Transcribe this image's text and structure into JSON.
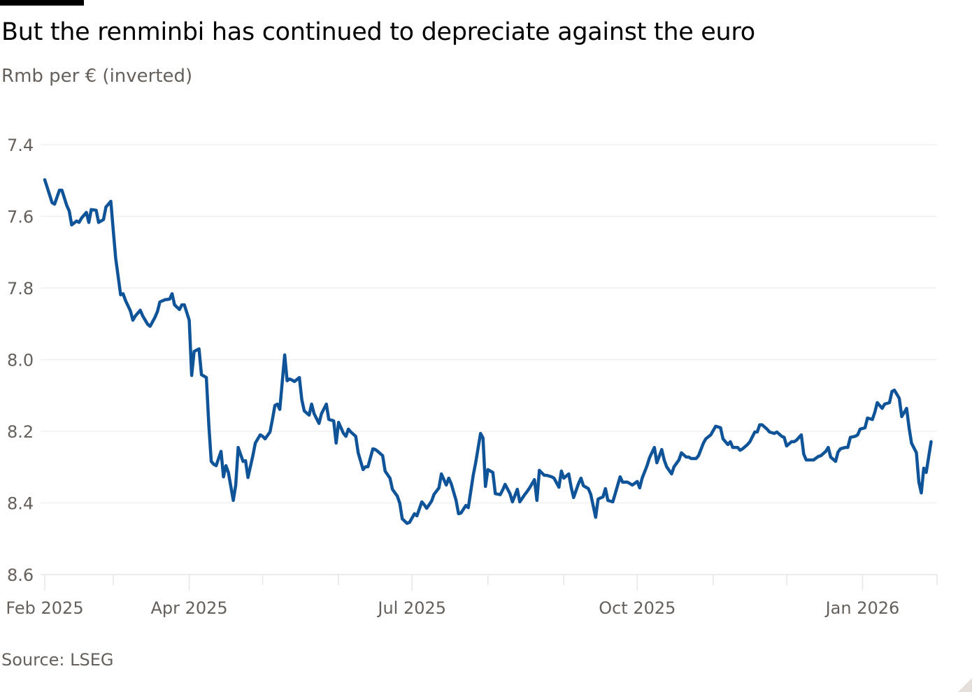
{
  "header": {
    "title": "But the renminbi has continued to depreciate against the euro",
    "subtitle": "Rmb per € (inverted)"
  },
  "footer": {
    "source": "Source: LSEG"
  },
  "chart_data": {
    "type": "line",
    "title": "But the renminbi has continued to depreciate against the euro",
    "ylabel": "Rmb per € (inverted)",
    "xlabel": "",
    "y_inverted": true,
    "ylim": [
      7.4,
      8.6
    ],
    "yticks": [
      "7.4",
      "7.6",
      "7.8",
      "8.0",
      "8.2",
      "8.4",
      "8.6"
    ],
    "xlim": [
      "2025-02-01",
      "2026-02-01"
    ],
    "xticks_minor_monthly": true,
    "xticks": [
      {
        "date": "2025-02-01",
        "label": "Feb 2025"
      },
      {
        "date": "2025-04-01",
        "label": "Apr 2025"
      },
      {
        "date": "2025-07-01",
        "label": "Jul 2025"
      },
      {
        "date": "2025-10-01",
        "label": "Oct 2025"
      },
      {
        "date": "2026-01-01",
        "label": "Jan 2026"
      }
    ],
    "grid": "horizontal",
    "line_color": "#0f5499",
    "series": [
      {
        "points": [
          [
            "2025-02-01",
            7.498
          ],
          [
            "2025-02-02",
            7.519
          ],
          [
            "2025-02-04",
            7.562
          ],
          [
            "2025-02-05",
            7.566
          ],
          [
            "2025-02-07",
            7.527
          ],
          [
            "2025-02-08",
            7.527
          ],
          [
            "2025-02-10",
            7.57
          ],
          [
            "2025-02-11",
            7.585
          ],
          [
            "2025-02-12",
            7.624
          ],
          [
            "2025-02-14",
            7.613
          ],
          [
            "2025-02-15",
            7.617
          ],
          [
            "2025-02-16",
            7.605
          ],
          [
            "2025-02-18",
            7.589
          ],
          [
            "2025-02-19",
            7.617
          ],
          [
            "2025-02-20",
            7.581
          ],
          [
            "2025-02-22",
            7.583
          ],
          [
            "2025-02-23",
            7.617
          ],
          [
            "2025-02-25",
            7.609
          ],
          [
            "2025-02-26",
            7.574
          ],
          [
            "2025-02-28",
            7.558
          ],
          [
            "2025-03-01",
            7.64
          ],
          [
            "2025-03-02",
            7.718
          ],
          [
            "2025-03-04",
            7.819
          ],
          [
            "2025-03-05",
            7.816
          ],
          [
            "2025-03-06",
            7.835
          ],
          [
            "2025-03-08",
            7.864
          ],
          [
            "2025-03-09",
            7.89
          ],
          [
            "2025-03-10",
            7.878
          ],
          [
            "2025-03-12",
            7.862
          ],
          [
            "2025-03-13",
            7.878
          ],
          [
            "2025-03-15",
            7.901
          ],
          [
            "2025-03-16",
            7.907
          ],
          [
            "2025-03-18",
            7.882
          ],
          [
            "2025-03-19",
            7.866
          ],
          [
            "2025-03-20",
            7.839
          ],
          [
            "2025-03-22",
            7.833
          ],
          [
            "2025-03-24",
            7.831
          ],
          [
            "2025-03-25",
            7.816
          ],
          [
            "2025-03-26",
            7.847
          ],
          [
            "2025-03-28",
            7.86
          ],
          [
            "2025-03-29",
            7.847
          ],
          [
            "2025-03-30",
            7.847
          ],
          [
            "2025-04-01",
            7.89
          ],
          [
            "2025-04-02",
            8.044
          ],
          [
            "2025-04-03",
            7.977
          ],
          [
            "2025-04-05",
            7.97
          ],
          [
            "2025-04-06",
            8.042
          ],
          [
            "2025-04-08",
            8.05
          ],
          [
            "2025-04-09",
            8.182
          ],
          [
            "2025-04-10",
            8.284
          ],
          [
            "2025-04-11",
            8.292
          ],
          [
            "2025-04-12",
            8.296
          ],
          [
            "2025-04-14",
            8.256
          ],
          [
            "2025-04-15",
            8.327
          ],
          [
            "2025-04-16",
            8.296
          ],
          [
            "2025-04-17",
            8.315
          ],
          [
            "2025-04-19",
            8.393
          ],
          [
            "2025-04-20",
            8.35
          ],
          [
            "2025-04-21",
            8.245
          ],
          [
            "2025-04-23",
            8.284
          ],
          [
            "2025-04-24",
            8.282
          ],
          [
            "2025-04-25",
            8.329
          ],
          [
            "2025-04-27",
            8.268
          ],
          [
            "2025-04-28",
            8.233
          ],
          [
            "2025-04-30",
            8.21
          ],
          [
            "2025-05-01",
            8.214
          ],
          [
            "2025-05-02",
            8.221
          ],
          [
            "2025-05-04",
            8.202
          ],
          [
            "2025-05-05",
            8.167
          ],
          [
            "2025-05-06",
            8.128
          ],
          [
            "2025-05-07",
            8.124
          ],
          [
            "2025-05-08",
            8.139
          ],
          [
            "2025-05-10",
            7.987
          ],
          [
            "2025-05-11",
            8.059
          ],
          [
            "2025-05-12",
            8.054
          ],
          [
            "2025-05-13",
            8.057
          ],
          [
            "2025-05-14",
            8.061
          ],
          [
            "2025-05-16",
            8.05
          ],
          [
            "2025-05-17",
            8.112
          ],
          [
            "2025-05-18",
            8.143
          ],
          [
            "2025-05-20",
            8.155
          ],
          [
            "2025-05-21",
            8.124
          ],
          [
            "2025-05-22",
            8.151
          ],
          [
            "2025-05-24",
            8.178
          ],
          [
            "2025-05-25",
            8.151
          ],
          [
            "2025-05-27",
            8.124
          ],
          [
            "2025-05-28",
            8.167
          ],
          [
            "2025-05-30",
            8.171
          ],
          [
            "2025-05-31",
            8.233
          ],
          [
            "2025-06-01",
            8.175
          ],
          [
            "2025-06-03",
            8.206
          ],
          [
            "2025-06-04",
            8.214
          ],
          [
            "2025-06-05",
            8.194
          ],
          [
            "2025-06-06",
            8.202
          ],
          [
            "2025-06-08",
            8.214
          ],
          [
            "2025-06-09",
            8.26
          ],
          [
            "2025-06-11",
            8.307
          ],
          [
            "2025-06-12",
            8.299
          ],
          [
            "2025-06-13",
            8.299
          ],
          [
            "2025-06-15",
            8.249
          ],
          [
            "2025-06-16",
            8.251
          ],
          [
            "2025-06-17",
            8.256
          ],
          [
            "2025-06-19",
            8.268
          ],
          [
            "2025-06-20",
            8.311
          ],
          [
            "2025-06-22",
            8.331
          ],
          [
            "2025-06-23",
            8.362
          ],
          [
            "2025-06-25",
            8.381
          ],
          [
            "2025-06-26",
            8.401
          ],
          [
            "2025-06-27",
            8.444
          ],
          [
            "2025-06-29",
            8.457
          ],
          [
            "2025-06-30",
            8.454
          ],
          [
            "2025-07-02",
            8.43
          ],
          [
            "2025-07-03",
            8.436
          ],
          [
            "2025-07-05",
            8.397
          ],
          [
            "2025-07-06",
            8.405
          ],
          [
            "2025-07-07",
            8.415
          ],
          [
            "2025-07-09",
            8.395
          ],
          [
            "2025-07-10",
            8.376
          ],
          [
            "2025-07-12",
            8.358
          ],
          [
            "2025-07-13",
            8.319
          ],
          [
            "2025-07-15",
            8.35
          ],
          [
            "2025-07-16",
            8.331
          ],
          [
            "2025-07-17",
            8.346
          ],
          [
            "2025-07-19",
            8.393
          ],
          [
            "2025-07-20",
            8.43
          ],
          [
            "2025-07-21",
            8.428
          ],
          [
            "2025-07-23",
            8.407
          ],
          [
            "2025-07-24",
            8.413
          ],
          [
            "2025-07-26",
            8.323
          ],
          [
            "2025-07-27",
            8.288
          ],
          [
            "2025-07-29",
            8.206
          ],
          [
            "2025-07-30",
            8.219
          ],
          [
            "2025-07-31",
            8.354
          ],
          [
            "2025-08-01",
            8.307
          ],
          [
            "2025-08-03",
            8.315
          ],
          [
            "2025-08-04",
            8.374
          ],
          [
            "2025-08-06",
            8.377
          ],
          [
            "2025-08-07",
            8.364
          ],
          [
            "2025-08-08",
            8.348
          ],
          [
            "2025-08-10",
            8.374
          ],
          [
            "2025-08-11",
            8.397
          ],
          [
            "2025-08-13",
            8.362
          ],
          [
            "2025-08-14",
            8.397
          ],
          [
            "2025-08-16",
            8.377
          ],
          [
            "2025-08-17",
            8.368
          ],
          [
            "2025-08-18",
            8.358
          ],
          [
            "2025-08-20",
            8.335
          ],
          [
            "2025-08-21",
            8.393
          ],
          [
            "2025-08-22",
            8.309
          ],
          [
            "2025-08-24",
            8.323
          ],
          [
            "2025-08-25",
            8.323
          ],
          [
            "2025-08-27",
            8.327
          ],
          [
            "2025-08-28",
            8.331
          ],
          [
            "2025-08-30",
            8.356
          ],
          [
            "2025-08-31",
            8.311
          ],
          [
            "2025-09-01",
            8.331
          ],
          [
            "2025-09-03",
            8.319
          ],
          [
            "2025-09-04",
            8.356
          ],
          [
            "2025-09-05",
            8.385
          ],
          [
            "2025-09-07",
            8.346
          ],
          [
            "2025-09-08",
            8.331
          ],
          [
            "2025-09-09",
            8.352
          ],
          [
            "2025-09-11",
            8.36
          ],
          [
            "2025-09-12",
            8.376
          ],
          [
            "2025-09-14",
            8.44
          ],
          [
            "2025-09-15",
            8.389
          ],
          [
            "2025-09-17",
            8.383
          ],
          [
            "2025-09-18",
            8.36
          ],
          [
            "2025-09-19",
            8.393
          ],
          [
            "2025-09-21",
            8.397
          ],
          [
            "2025-09-22",
            8.374
          ],
          [
            "2025-09-24",
            8.327
          ],
          [
            "2025-09-25",
            8.342
          ],
          [
            "2025-09-27",
            8.342
          ],
          [
            "2025-09-28",
            8.346
          ],
          [
            "2025-09-29",
            8.35
          ],
          [
            "2025-10-01",
            8.34
          ],
          [
            "2025-10-02",
            8.358
          ],
          [
            "2025-10-03",
            8.331
          ],
          [
            "2025-10-05",
            8.296
          ],
          [
            "2025-10-06",
            8.274
          ],
          [
            "2025-10-08",
            8.245
          ],
          [
            "2025-10-09",
            8.288
          ],
          [
            "2025-10-11",
            8.251
          ],
          [
            "2025-10-12",
            8.28
          ],
          [
            "2025-10-13",
            8.299
          ],
          [
            "2025-10-15",
            8.319
          ],
          [
            "2025-10-16",
            8.299
          ],
          [
            "2025-10-18",
            8.28
          ],
          [
            "2025-10-19",
            8.26
          ],
          [
            "2025-10-21",
            8.272
          ],
          [
            "2025-10-22",
            8.272
          ],
          [
            "2025-10-23",
            8.276
          ],
          [
            "2025-10-25",
            8.276
          ],
          [
            "2025-10-26",
            8.268
          ],
          [
            "2025-10-28",
            8.233
          ],
          [
            "2025-10-29",
            8.221
          ],
          [
            "2025-10-31",
            8.21
          ],
          [
            "2025-11-01",
            8.198
          ],
          [
            "2025-11-02",
            8.186
          ],
          [
            "2025-11-04",
            8.19
          ],
          [
            "2025-11-05",
            8.221
          ],
          [
            "2025-11-07",
            8.237
          ],
          [
            "2025-11-08",
            8.229
          ],
          [
            "2025-11-09",
            8.245
          ],
          [
            "2025-11-11",
            8.245
          ],
          [
            "2025-11-12",
            8.253
          ],
          [
            "2025-11-13",
            8.249
          ],
          [
            "2025-11-15",
            8.237
          ],
          [
            "2025-11-16",
            8.229
          ],
          [
            "2025-11-18",
            8.202
          ],
          [
            "2025-11-19",
            8.202
          ],
          [
            "2025-11-20",
            8.182
          ],
          [
            "2025-11-21",
            8.182
          ],
          [
            "2025-11-23",
            8.194
          ],
          [
            "2025-11-24",
            8.202
          ],
          [
            "2025-11-26",
            8.206
          ],
          [
            "2025-11-27",
            8.202
          ],
          [
            "2025-11-29",
            8.214
          ],
          [
            "2025-11-30",
            8.217
          ],
          [
            "2025-12-01",
            8.241
          ],
          [
            "2025-12-03",
            8.229
          ],
          [
            "2025-12-04",
            8.229
          ],
          [
            "2025-12-05",
            8.225
          ],
          [
            "2025-12-07",
            8.21
          ],
          [
            "2025-12-08",
            8.264
          ],
          [
            "2025-12-09",
            8.28
          ],
          [
            "2025-12-11",
            8.28
          ],
          [
            "2025-12-12",
            8.28
          ],
          [
            "2025-12-14",
            8.27
          ],
          [
            "2025-12-15",
            8.268
          ],
          [
            "2025-12-17",
            8.256
          ],
          [
            "2025-12-18",
            8.245
          ],
          [
            "2025-12-19",
            8.272
          ],
          [
            "2025-12-21",
            8.284
          ],
          [
            "2025-12-22",
            8.258
          ],
          [
            "2025-12-23",
            8.249
          ],
          [
            "2025-12-25",
            8.245
          ],
          [
            "2025-12-26",
            8.245
          ],
          [
            "2025-12-27",
            8.217
          ],
          [
            "2025-12-29",
            8.214
          ],
          [
            "2025-12-30",
            8.21
          ],
          [
            "2025-12-31",
            8.194
          ],
          [
            "2026-01-02",
            8.19
          ],
          [
            "2026-01-03",
            8.163
          ],
          [
            "2026-01-05",
            8.167
          ],
          [
            "2026-01-06",
            8.147
          ],
          [
            "2026-01-07",
            8.12
          ],
          [
            "2026-01-09",
            8.136
          ],
          [
            "2026-01-10",
            8.124
          ],
          [
            "2026-01-12",
            8.12
          ],
          [
            "2026-01-13",
            8.089
          ],
          [
            "2026-01-14",
            8.085
          ],
          [
            "2026-01-16",
            8.108
          ],
          [
            "2026-01-17",
            8.159
          ],
          [
            "2026-01-19",
            8.136
          ],
          [
            "2026-01-20",
            8.19
          ],
          [
            "2026-01-21",
            8.233
          ],
          [
            "2026-01-23",
            8.26
          ],
          [
            "2026-01-24",
            8.342
          ],
          [
            "2026-01-25",
            8.372
          ],
          [
            "2026-01-26",
            8.303
          ],
          [
            "2026-01-27",
            8.315
          ],
          [
            "2026-01-29",
            8.229
          ]
        ]
      }
    ]
  }
}
